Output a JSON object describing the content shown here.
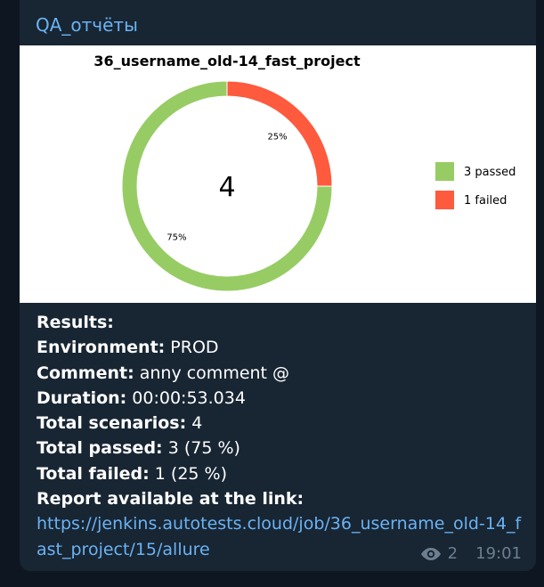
{
  "channel": {
    "name": "QA_отчёты"
  },
  "chart_data": {
    "type": "pie",
    "title": "36_username_old-14_fast_project",
    "center_label": "4",
    "slices": [
      {
        "label": "3 passed",
        "value": 3,
        "percent_label": "75%",
        "color": "#97cc64"
      },
      {
        "label": "1 failed",
        "value": 1,
        "percent_label": "25%",
        "color": "#fd5a3e"
      }
    ],
    "legend_position": "right"
  },
  "message": {
    "results_label": "Results:",
    "environment_label": "Environment:",
    "environment_value": " PROD",
    "comment_label": "Comment:",
    "comment_value": " anny comment @",
    "duration_label": "Duration:",
    "duration_value": " 00:00:53.034",
    "total_scenarios_label": "Total scenarios:",
    "total_scenarios_value": " 4",
    "total_passed_label": "Total passed:",
    "total_passed_value": " 3 (75 %)",
    "total_failed_label": "Total failed:",
    "total_failed_value": " 1 (25 %)",
    "report_label": "Report available at the link:",
    "report_link": "https://jenkins.autotests.cloud/job/36_username_old-14_fast_project/15/allure"
  },
  "meta": {
    "views": "2",
    "time": "19:01"
  }
}
